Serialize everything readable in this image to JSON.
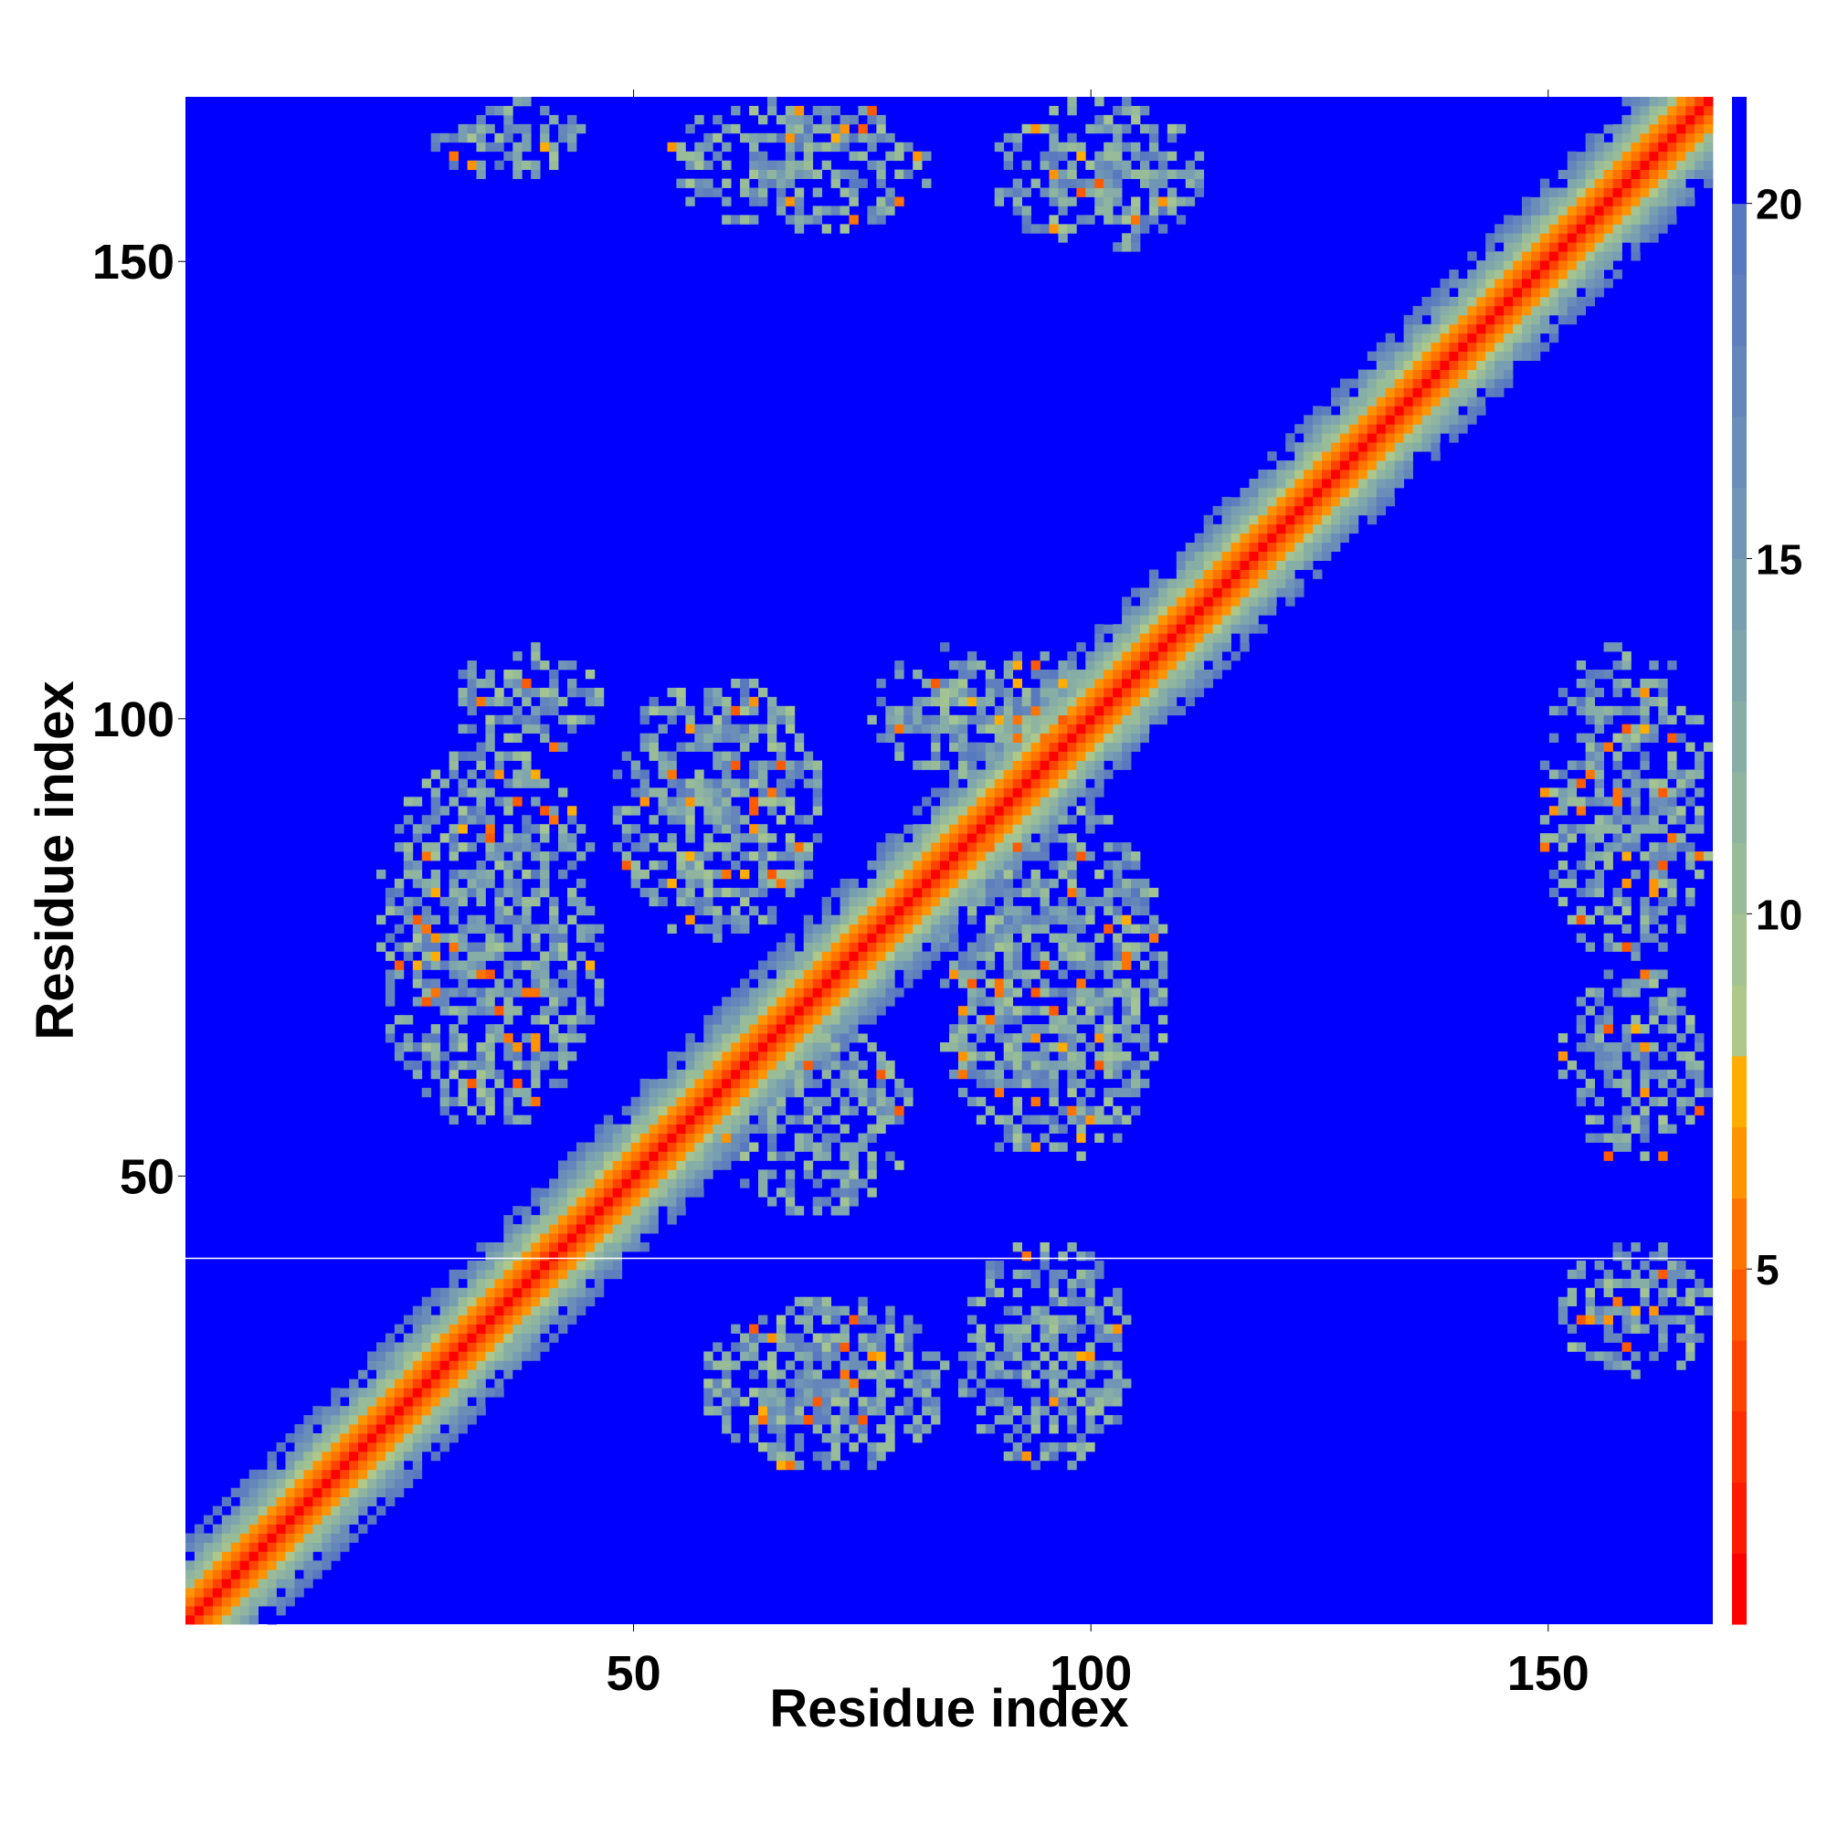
{
  "chart_data": {
    "type": "heatmap",
    "title": "",
    "xlabel": "Residue index",
    "ylabel": "Residue index",
    "n_residues": 168,
    "xlim": [
      1,
      168
    ],
    "ylim": [
      1,
      168
    ],
    "x_ticks": [
      50,
      100,
      150
    ],
    "y_ticks": [
      50,
      100,
      150
    ],
    "colorbar": {
      "range": [
        0,
        21.5
      ],
      "ticks": [
        5,
        10,
        15,
        20
      ],
      "bins": [
        {
          "max": 1,
          "color": "#ff0000"
        },
        {
          "max": 2,
          "color": "#ff1a00"
        },
        {
          "max": 3,
          "color": "#ff2d00"
        },
        {
          "max": 4,
          "color": "#ff4200"
        },
        {
          "max": 5,
          "color": "#ff5a00"
        },
        {
          "max": 6,
          "color": "#ff7400"
        },
        {
          "max": 7,
          "color": "#ff9400"
        },
        {
          "max": 8,
          "color": "#ffad00"
        },
        {
          "max": 9,
          "color": "#aec88a"
        },
        {
          "max": 10,
          "color": "#a3c392"
        },
        {
          "max": 11,
          "color": "#99bc98"
        },
        {
          "max": 12,
          "color": "#8fb5a0"
        },
        {
          "max": 13,
          "color": "#87aea6"
        },
        {
          "max": 14,
          "color": "#7fa6ac"
        },
        {
          "max": 15,
          "color": "#789eb1"
        },
        {
          "max": 16,
          "color": "#7196b5"
        },
        {
          "max": 17,
          "color": "#6a8eb8"
        },
        {
          "max": 18,
          "color": "#6486bb"
        },
        {
          "max": 19,
          "color": "#5e7ebe"
        },
        {
          "max": 20,
          "color": "#5878c0"
        },
        {
          "max": 21.5,
          "color": "#0000ff"
        }
      ]
    },
    "background_value": 21.5,
    "diagonal_profile": [
      {
        "offset": 0,
        "value": 0.5
      },
      {
        "offset": 1,
        "value": 3.8
      },
      {
        "offset": 2,
        "value": 5.5
      },
      {
        "offset": 3,
        "value": 6.6
      },
      {
        "offset": 4,
        "value": 9.5
      },
      {
        "offset": 5,
        "value": 11.5
      },
      {
        "offset": 6,
        "value": 13.5
      },
      {
        "offset": 7,
        "value": 15.5
      },
      {
        "offset": 8,
        "value": 17.5
      },
      {
        "offset": 9,
        "value": 19.5
      }
    ],
    "contact_regions": [
      {
        "x": [
          58,
          84
        ],
        "y": [
          18,
          36
        ],
        "density": 0.7
      },
      {
        "x": [
          86,
          104
        ],
        "y": [
          18,
          42
        ],
        "density": 0.6
      },
      {
        "x": [
          60,
          80
        ],
        "y": [
          46,
          66
        ],
        "density": 0.6
      },
      {
        "x": [
          84,
          108
        ],
        "y": [
          52,
          90
        ],
        "density": 0.65
      },
      {
        "x": [
          22,
          46
        ],
        "y": [
          56,
          96
        ],
        "density": 0.6
      },
      {
        "x": [
          48,
          70
        ],
        "y": [
          76,
          104
        ],
        "density": 0.65
      },
      {
        "x": [
          30,
          46
        ],
        "y": [
          96,
          108
        ],
        "density": 0.5
      },
      {
        "x": [
          76,
          100
        ],
        "y": [
          94,
          108
        ],
        "density": 0.6
      },
      {
        "x": [
          54,
          82
        ],
        "y": [
          154,
          168
        ],
        "density": 0.55
      },
      {
        "x": [
          90,
          112
        ],
        "y": [
          152,
          168
        ],
        "density": 0.55
      },
      {
        "x": [
          28,
          44
        ],
        "y": [
          160,
          168
        ],
        "density": 0.45
      },
      {
        "x": [
          152,
          168
        ],
        "y": [
          28,
          42
        ],
        "density": 0.5
      },
      {
        "x": [
          152,
          168
        ],
        "y": [
          52,
          72
        ],
        "density": 0.55
      },
      {
        "x": [
          150,
          168
        ],
        "y": [
          74,
          108
        ],
        "density": 0.6
      }
    ],
    "horizontal_line": {
      "y": 41,
      "color": "#ffffff"
    }
  }
}
